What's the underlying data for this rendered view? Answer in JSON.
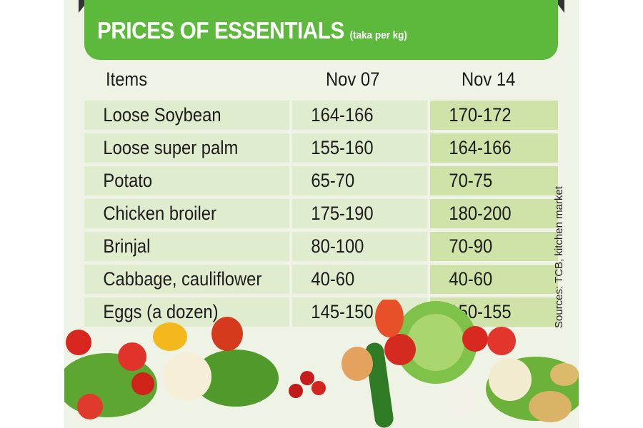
{
  "header": {
    "title": "PRICES OF ESSENTIALS",
    "unit": "(taka per kg)"
  },
  "columns": [
    "Items",
    "Nov 07",
    "Nov 14"
  ],
  "rows": [
    {
      "item": "Loose Soybean",
      "nov07": "164-166",
      "nov14": "170-172"
    },
    {
      "item": "Loose super palm",
      "nov07": "155-160",
      "nov14": "164-166"
    },
    {
      "item": "Potato",
      "nov07": "65-70",
      "nov14": "70-75"
    },
    {
      "item": "Chicken broiler",
      "nov07": "175-190",
      "nov14": "180-200"
    },
    {
      "item": "Brinjal",
      "nov07": "80-100",
      "nov14": "70-90"
    },
    {
      "item": "Cabbage, cauliflower",
      "nov07": "40-60",
      "nov14": "40-60"
    },
    {
      "item": "Eggs (a dozen)",
      "nov07": "145-150",
      "nov14": "150-155"
    }
  ],
  "sources": "Sources: TCB, kitchen market",
  "colors": {
    "header_green": "#5cb93c",
    "row_light": "#dfeccd",
    "row_highlight": "#cfe3a8",
    "background": "#eef3e6"
  }
}
